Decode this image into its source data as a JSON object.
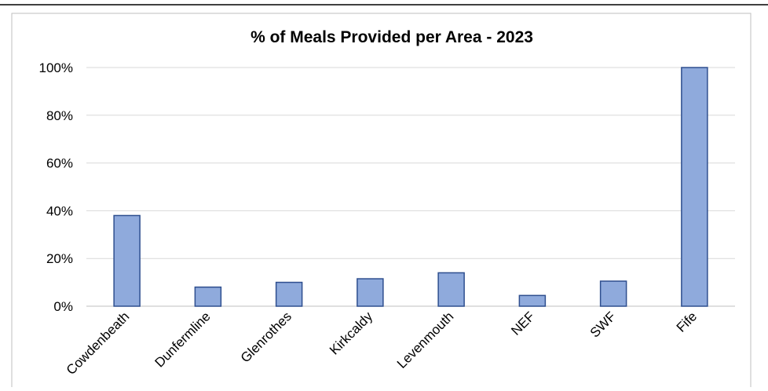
{
  "chart_data": {
    "type": "bar",
    "title": "% of Meals Provided per Area - 2023",
    "categories": [
      "Cowdenbeath",
      "Dunfermline",
      "Glenrothes",
      "Kirkcaldy",
      "Levenmouth",
      "NEF",
      "SWF",
      "Fife"
    ],
    "values": [
      38,
      8,
      10,
      11.5,
      14,
      4.5,
      10.5,
      100
    ],
    "y_ticks": [
      "0%",
      "20%",
      "40%",
      "60%",
      "80%",
      "100%"
    ],
    "ylim": [
      0,
      100
    ],
    "grid": true,
    "legend": "none",
    "colors": {
      "bar_fill": "#8faadc",
      "bar_stroke": "#2f4f8f",
      "grid": "#d9d9d9",
      "text": "#000000"
    }
  }
}
